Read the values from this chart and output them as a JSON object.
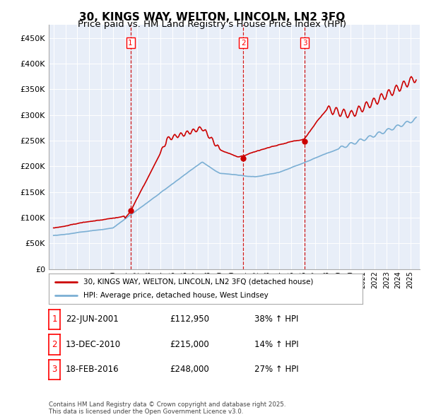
{
  "title": "30, KINGS WAY, WELTON, LINCOLN, LN2 3FQ",
  "subtitle": "Price paid vs. HM Land Registry's House Price Index (HPI)",
  "ylim": [
    0,
    475000
  ],
  "yticks": [
    0,
    50000,
    100000,
    150000,
    200000,
    250000,
    300000,
    350000,
    400000,
    450000
  ],
  "ytick_labels": [
    "£0",
    "£50K",
    "£100K",
    "£150K",
    "£200K",
    "£250K",
    "£300K",
    "£350K",
    "£400K",
    "£450K"
  ],
  "hpi_color": "#7bafd4",
  "price_color": "#cc0000",
  "vline_color": "#cc0000",
  "background_color": "#e8eef8",
  "sale_dates_num": [
    2001.47,
    2010.95,
    2016.12
  ],
  "sale_prices": [
    112950,
    215000,
    248000
  ],
  "sale_labels": [
    "1",
    "2",
    "3"
  ],
  "legend_price_label": "30, KINGS WAY, WELTON, LINCOLN, LN2 3FQ (detached house)",
  "legend_hpi_label": "HPI: Average price, detached house, West Lindsey",
  "table_data": [
    [
      "1",
      "22-JUN-2001",
      "£112,950",
      "38% ↑ HPI"
    ],
    [
      "2",
      "13-DEC-2010",
      "£215,000",
      "14% ↑ HPI"
    ],
    [
      "3",
      "18-FEB-2016",
      "£248,000",
      "27% ↑ HPI"
    ]
  ],
  "footer": "Contains HM Land Registry data © Crown copyright and database right 2025.\nThis data is licensed under the Open Government Licence v3.0.",
  "title_fontsize": 11,
  "subtitle_fontsize": 9.5
}
